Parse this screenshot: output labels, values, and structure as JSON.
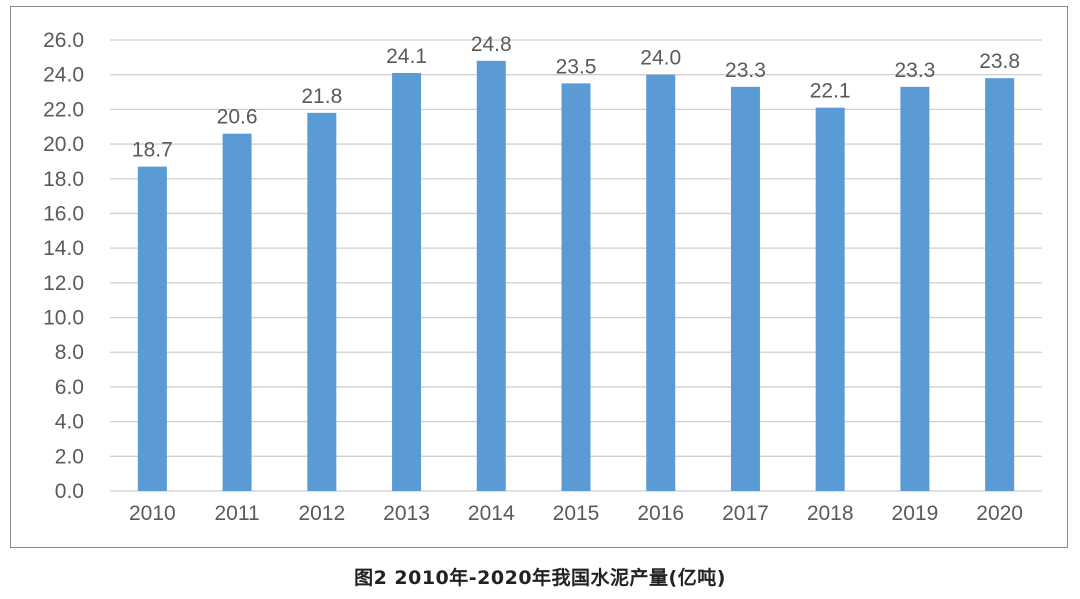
{
  "caption": "图2  2010年-2020年我国水泥产量(亿吨)",
  "chart_data": {
    "type": "bar",
    "title": "",
    "xlabel": "",
    "ylabel": "",
    "categories": [
      "2010",
      "2011",
      "2012",
      "2013",
      "2014",
      "2015",
      "2016",
      "2017",
      "2018",
      "2019",
      "2020"
    ],
    "values": [
      18.7,
      20.6,
      21.8,
      24.1,
      24.8,
      23.5,
      24.0,
      23.3,
      22.1,
      23.3,
      23.8
    ],
    "data_labels": [
      "18.7",
      "20.6",
      "21.8",
      "24.1",
      "24.8",
      "23.5",
      "24.0",
      "23.3",
      "22.1",
      "23.3",
      "23.8"
    ],
    "ylim": [
      0,
      26
    ],
    "yticks": [
      "0.0",
      "2.0",
      "4.0",
      "6.0",
      "8.0",
      "10.0",
      "12.0",
      "14.0",
      "16.0",
      "18.0",
      "20.0",
      "22.0",
      "24.0",
      "26.0"
    ],
    "grid": true,
    "legend": "none",
    "colors": {
      "bar": "#5b9bd5",
      "grid": "#d0d0d0",
      "text": "#5a5a5a"
    }
  }
}
